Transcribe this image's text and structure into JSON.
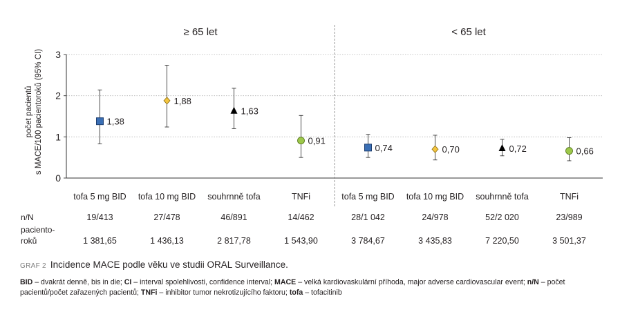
{
  "chart_data": {
    "type": "scatter",
    "ylabel_line1": "počet pacientů",
    "ylabel_line2": "s MACE/100 pacientoroků (95% CI)",
    "ylim": [
      0,
      3
    ],
    "yticks": [
      "0",
      "1",
      "2",
      "3"
    ],
    "grid": true,
    "panels": [
      {
        "title": "≥ 65 let",
        "points": [
          {
            "category": "tofa 5 mg BID",
            "value": 1.38,
            "label": "1,38",
            "ci_low": 0.83,
            "ci_high": 2.14,
            "marker": "square",
            "color": "#3a6fb5",
            "nN": "19/413",
            "patient_years": "1 381,65"
          },
          {
            "category": "tofa 10 mg BID",
            "value": 1.88,
            "label": "1,88",
            "ci_low": 1.24,
            "ci_high": 2.74,
            "marker": "diamond",
            "color": "#f3c53f",
            "nN": "27/478",
            "patient_years": "1 436,13"
          },
          {
            "category": "souhrnně tofa",
            "value": 1.63,
            "label": "1,63",
            "ci_low": 1.2,
            "ci_high": 2.18,
            "marker": "triangle",
            "color": "#000000",
            "nN": "46/891",
            "patient_years": "2 817,78"
          },
          {
            "category": "TNFi",
            "value": 0.91,
            "label": "0,91",
            "ci_low": 0.5,
            "ci_high": 1.52,
            "marker": "circle",
            "color": "#9dc84a",
            "nN": "14/462",
            "patient_years": "1 543,90"
          }
        ]
      },
      {
        "title": "< 65 let",
        "points": [
          {
            "category": "tofa 5 mg BID",
            "value": 0.74,
            "label": "0,74",
            "ci_low": 0.5,
            "ci_high": 1.06,
            "marker": "square",
            "color": "#3a6fb5",
            "nN": "28/1 042",
            "patient_years": "3 784,67"
          },
          {
            "category": "tofa 10 mg BID",
            "value": 0.7,
            "label": "0,70",
            "ci_low": 0.44,
            "ci_high": 1.04,
            "marker": "diamond",
            "color": "#f3c53f",
            "nN": "24/978",
            "patient_years": "3 435,83"
          },
          {
            "category": "souhrnně tofa",
            "value": 0.72,
            "label": "0,72",
            "ci_low": 0.54,
            "ci_high": 0.94,
            "marker": "triangle",
            "color": "#000000",
            "nN": "52/2 020",
            "patient_years": "7 220,50"
          },
          {
            "category": "TNFi",
            "value": 0.66,
            "label": "0,66",
            "ci_low": 0.42,
            "ci_high": 0.98,
            "marker": "circle",
            "color": "#9dc84a",
            "nN": "23/989",
            "patient_years": "3 501,37"
          }
        ]
      }
    ],
    "row_labels": {
      "nN": "n/N",
      "patient_years_1": "paciento-",
      "patient_years_2": "roků"
    }
  },
  "caption": {
    "tag": "GRAF 2",
    "title": "Incidence MACE podle věku ve studii ORAL Surveillance."
  },
  "legend": [
    {
      "term": "BID",
      "text": " – dvakrát denně, bis in die; "
    },
    {
      "term": "CI",
      "text": " – interval spolehlivosti, confidence interval; "
    },
    {
      "term": "MACE",
      "text": " – velká kardiovaskulární příhoda, major adverse cardiovascular event; "
    },
    {
      "term": "n/N",
      "text": " – počet pacientů/počet zařazených pacientů; "
    },
    {
      "term": "TNFi",
      "text": " – inhibitor tumor nekrotizujícího faktoru; "
    },
    {
      "term": "tofa",
      "text": " – tofacitinib"
    }
  ]
}
